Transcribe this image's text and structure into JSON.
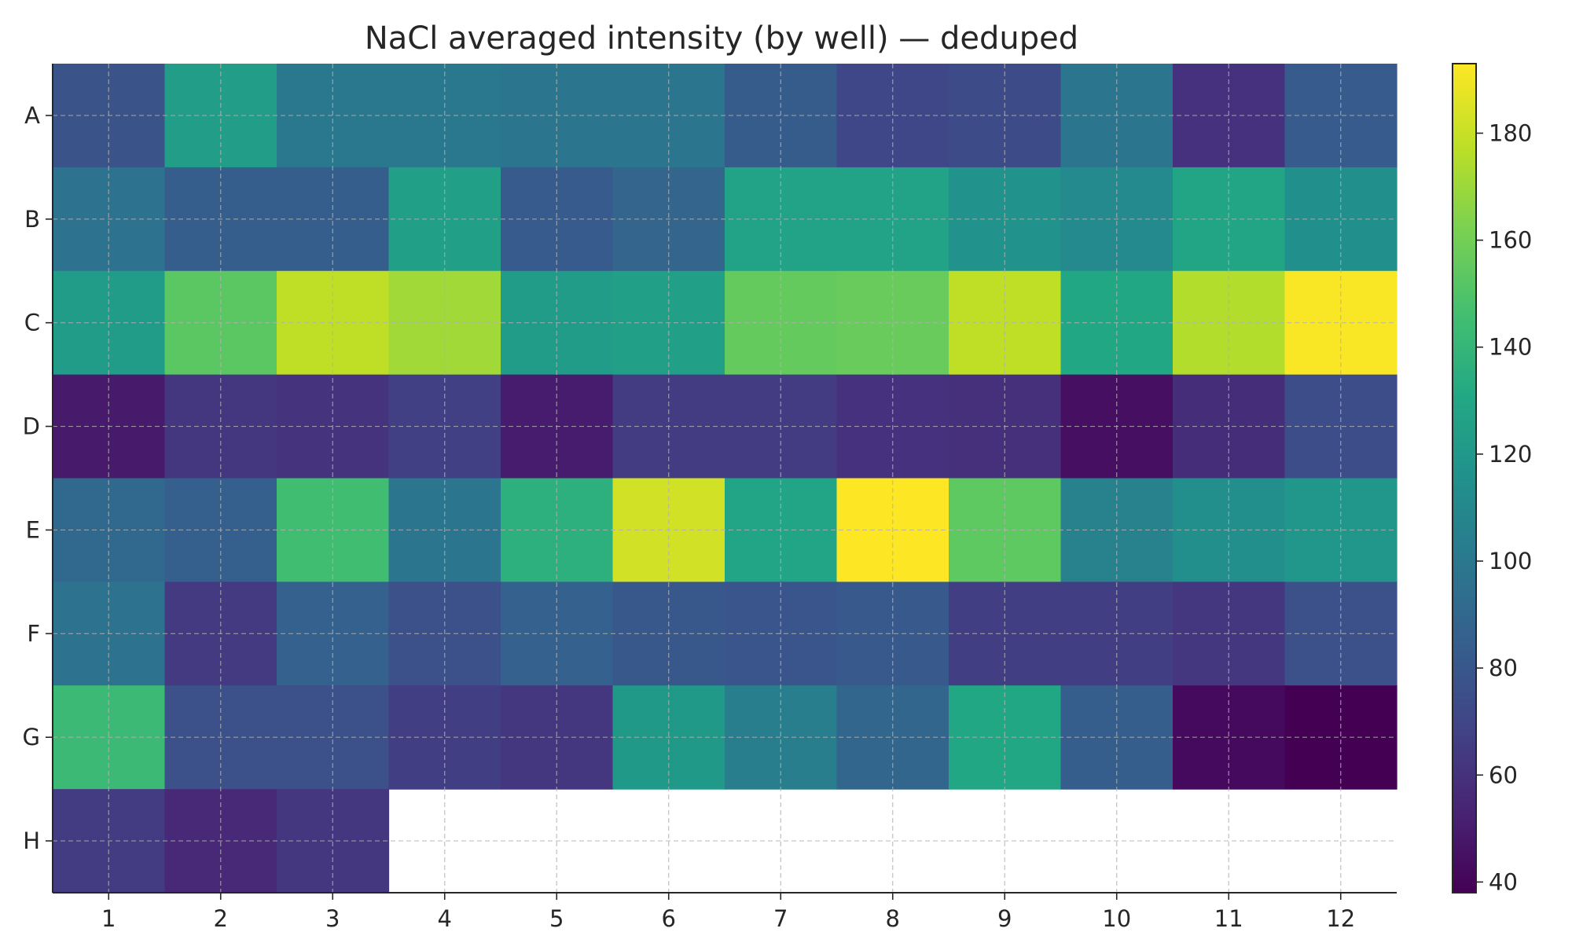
{
  "chart_data": {
    "type": "heatmap",
    "title": "NaCl averaged intensity (by well) — deduped",
    "xlabel": "",
    "ylabel": "",
    "columns": [
      "1",
      "2",
      "3",
      "4",
      "5",
      "6",
      "7",
      "8",
      "9",
      "10",
      "11",
      "12"
    ],
    "rows": [
      "A",
      "B",
      "C",
      "D",
      "E",
      "F",
      "G",
      "H"
    ],
    "values": [
      [
        78,
        124,
        100,
        100,
        99,
        99,
        83,
        71,
        73,
        98,
        60,
        82
      ],
      [
        96,
        84,
        84,
        125,
        82,
        88,
        127,
        127,
        116,
        111,
        129,
        115
      ],
      [
        123,
        153,
        178,
        171,
        123,
        125,
        156,
        157,
        178,
        130,
        175,
        192
      ],
      [
        49,
        62,
        61,
        67,
        50,
        65,
        65,
        60,
        59,
        44,
        58,
        74
      ],
      [
        91,
        85,
        145,
        98,
        136,
        182,
        128,
        193,
        154,
        106,
        114,
        119
      ],
      [
        96,
        64,
        86,
        76,
        86,
        80,
        79,
        81,
        66,
        66,
        62,
        76
      ],
      [
        143,
        76,
        76,
        66,
        62,
        121,
        104,
        89,
        130,
        84,
        42,
        38
      ],
      [
        65,
        56,
        62,
        null,
        null,
        null,
        null,
        null,
        null,
        null,
        null,
        null
      ]
    ],
    "colormap": "viridis",
    "vmin": 38,
    "vmax": 193,
    "colorbar_ticks": [
      40,
      60,
      80,
      100,
      120,
      140,
      160,
      180
    ],
    "grid": true
  }
}
